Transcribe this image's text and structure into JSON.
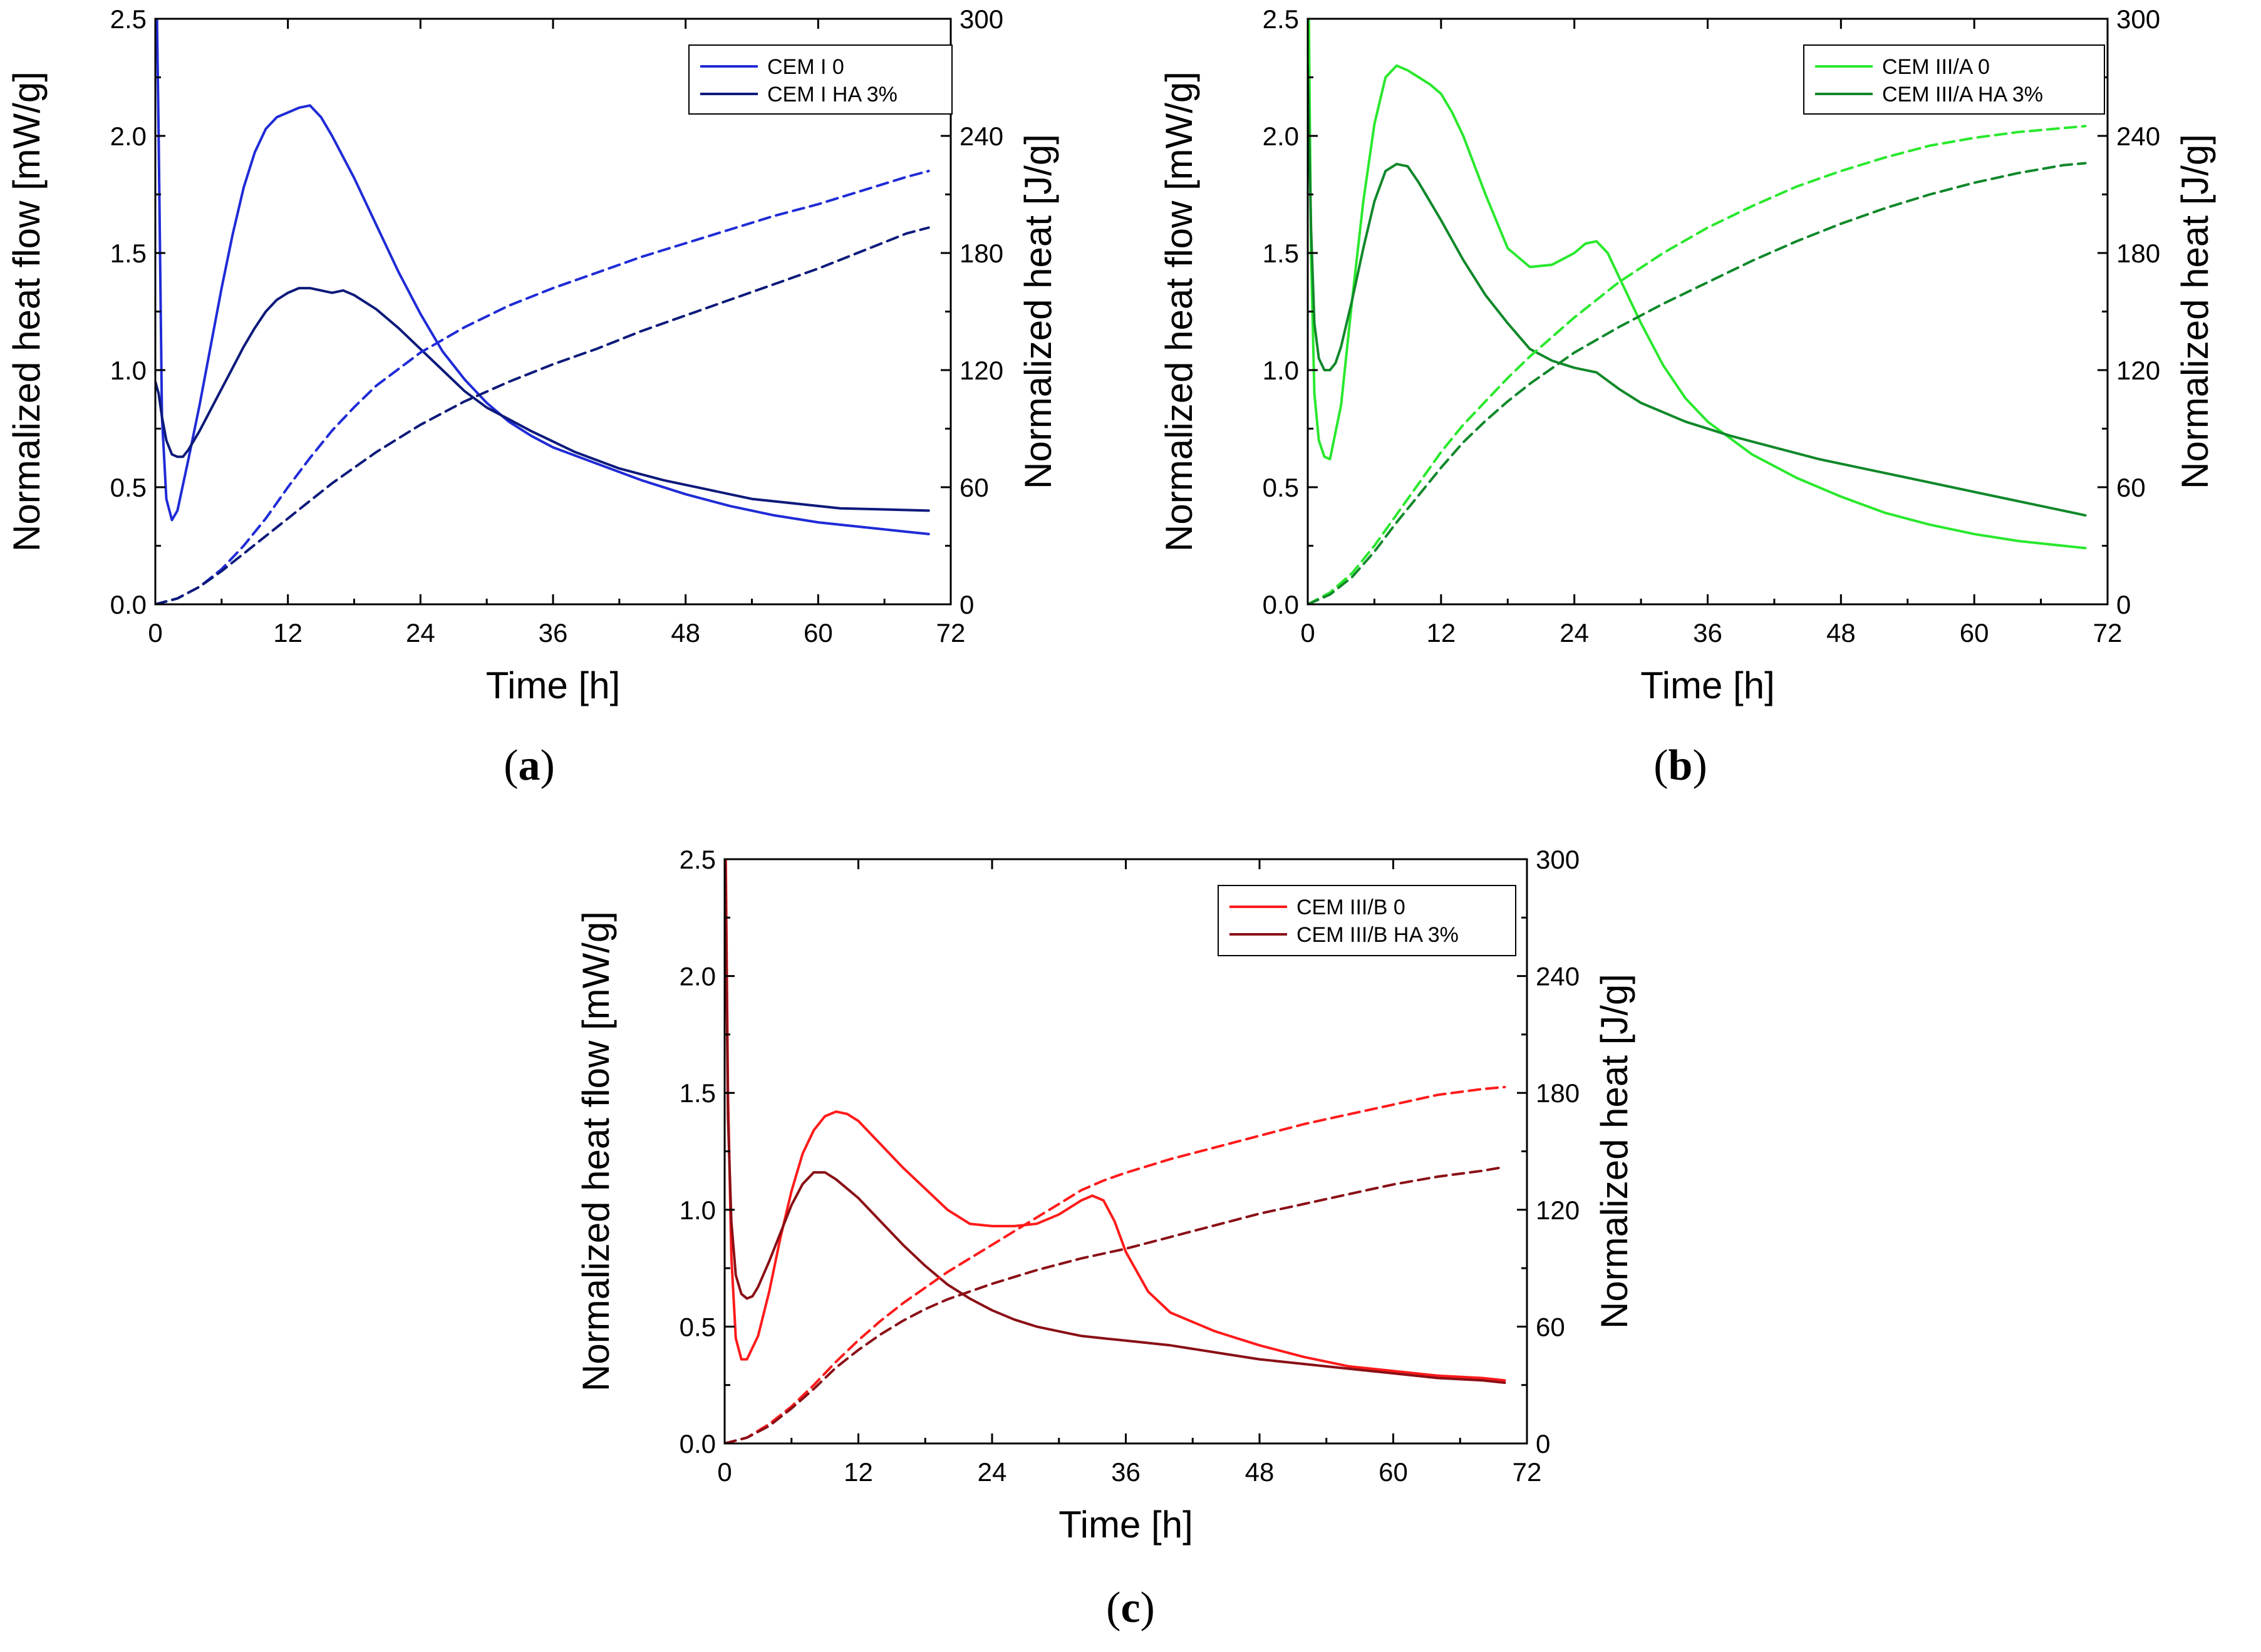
{
  "chart_data": [
    {
      "id": "a",
      "type": "line",
      "panel_label": "a",
      "xlabel": "Time [h]",
      "ylabel_left": "Normalized heat flow [mW/g]",
      "ylabel_right": "Normalized heat [J/g]",
      "xlim": [
        0,
        72
      ],
      "xticks": [
        "0",
        "12",
        "24",
        "36",
        "48",
        "60",
        "72"
      ],
      "ylim_left": [
        0.0,
        2.5
      ],
      "yticks_left": [
        "0.0",
        "0.5",
        "1.0",
        "1.5",
        "2.0",
        "2.5"
      ],
      "ylim_right": [
        0,
        300
      ],
      "yticks_right": [
        "0",
        "60",
        "120",
        "180",
        "240",
        "300"
      ],
      "legend": [
        "CEM I 0",
        "CEM I HA 3%"
      ],
      "series": [
        {
          "name": "CEM I 0",
          "color": "#1f2bd6",
          "axis": "left",
          "dash": false,
          "x": [
            0,
            0.3,
            0.6,
            1.0,
            1.5,
            2.0,
            3,
            4,
            5,
            6,
            7,
            8,
            9,
            10,
            11,
            12,
            13,
            14,
            15,
            16,
            18,
            20,
            22,
            24,
            26,
            28,
            30,
            32,
            34,
            36,
            40,
            44,
            48,
            52,
            56,
            60,
            64,
            68,
            70
          ],
          "y": [
            3.0,
            2.0,
            0.8,
            0.45,
            0.36,
            0.4,
            0.62,
            0.85,
            1.1,
            1.35,
            1.58,
            1.78,
            1.93,
            2.03,
            2.08,
            2.1,
            2.12,
            2.13,
            2.08,
            2.0,
            1.82,
            1.62,
            1.42,
            1.24,
            1.08,
            0.96,
            0.86,
            0.78,
            0.72,
            0.67,
            0.6,
            0.53,
            0.47,
            0.42,
            0.38,
            0.35,
            0.33,
            0.31,
            0.3
          ]
        },
        {
          "name": "CEM I HA 3%",
          "color": "#0d1a7a",
          "axis": "left",
          "dash": false,
          "x": [
            0,
            0.3,
            0.6,
            1.0,
            1.5,
            2.0,
            2.5,
            3,
            4,
            5,
            6,
            7,
            8,
            9,
            10,
            11,
            12,
            13,
            14,
            15,
            16,
            17,
            18,
            20,
            22,
            24,
            26,
            28,
            30,
            34,
            38,
            42,
            46,
            50,
            54,
            58,
            62,
            66,
            70
          ],
          "y": [
            0.95,
            0.9,
            0.8,
            0.7,
            0.64,
            0.63,
            0.63,
            0.66,
            0.74,
            0.83,
            0.92,
            1.01,
            1.1,
            1.18,
            1.25,
            1.3,
            1.33,
            1.35,
            1.35,
            1.34,
            1.33,
            1.34,
            1.32,
            1.26,
            1.18,
            1.09,
            1.0,
            0.91,
            0.84,
            0.74,
            0.65,
            0.58,
            0.53,
            0.49,
            0.45,
            0.43,
            0.41,
            0.405,
            0.4
          ]
        },
        {
          "name": "CEM I 0 (heat)",
          "color": "#1f2bd6",
          "axis": "right",
          "dash": true,
          "x": [
            0,
            2,
            4,
            6,
            8,
            10,
            12,
            14,
            16,
            18,
            20,
            24,
            28,
            32,
            36,
            40,
            44,
            48,
            52,
            56,
            60,
            64,
            68,
            70
          ],
          "y": [
            0,
            3,
            9,
            18,
            30,
            44,
            60,
            75,
            89,
            101,
            112,
            129,
            142,
            153,
            162,
            170,
            178,
            185,
            192,
            199,
            205,
            212,
            219,
            222
          ]
        },
        {
          "name": "CEM I HA 3% (heat)",
          "color": "#0d1a7a",
          "axis": "right",
          "dash": true,
          "x": [
            0,
            2,
            4,
            6,
            8,
            10,
            12,
            14,
            16,
            18,
            20,
            24,
            28,
            32,
            36,
            40,
            44,
            48,
            52,
            56,
            60,
            64,
            68,
            70
          ],
          "y": [
            0,
            3,
            9,
            17,
            26,
            35,
            44,
            53,
            62,
            70,
            78,
            92,
            104,
            114,
            123,
            131,
            140,
            148,
            156,
            164,
            172,
            181,
            190,
            193
          ]
        }
      ]
    },
    {
      "id": "b",
      "type": "line",
      "panel_label": "b",
      "xlabel": "Time [h]",
      "ylabel_left": "Normalized heat flow [mW/g]",
      "ylabel_right": "Normalized heat [J/g]",
      "xlim": [
        0,
        72
      ],
      "xticks": [
        "0",
        "12",
        "24",
        "36",
        "48",
        "60",
        "72"
      ],
      "ylim_left": [
        0.0,
        2.5
      ],
      "yticks_left": [
        "0.0",
        "0.5",
        "1.0",
        "1.5",
        "2.0",
        "2.5"
      ],
      "ylim_right": [
        0,
        300
      ],
      "yticks_right": [
        "0",
        "60",
        "120",
        "180",
        "240",
        "300"
      ],
      "legend": [
        "CEM III/A 0",
        "CEM III/A HA 3%"
      ],
      "series": [
        {
          "name": "CEM III/A 0",
          "color": "#29e82d",
          "axis": "left",
          "dash": false,
          "x": [
            0,
            0.3,
            0.6,
            1.0,
            1.5,
            2.0,
            3,
            4,
            5,
            6,
            7,
            8,
            9,
            10,
            11,
            12,
            13,
            14,
            16,
            18,
            20,
            22,
            24,
            25,
            26,
            27,
            28,
            30,
            32,
            34,
            36,
            40,
            44,
            48,
            52,
            56,
            60,
            64,
            68,
            70
          ],
          "y": [
            3.0,
            1.5,
            0.9,
            0.7,
            0.63,
            0.62,
            0.85,
            1.3,
            1.72,
            2.05,
            2.25,
            2.3,
            2.28,
            2.25,
            2.22,
            2.18,
            2.1,
            2.0,
            1.75,
            1.52,
            1.44,
            1.45,
            1.5,
            1.54,
            1.55,
            1.5,
            1.4,
            1.2,
            1.02,
            0.88,
            0.78,
            0.64,
            0.54,
            0.46,
            0.39,
            0.34,
            0.3,
            0.27,
            0.25,
            0.24
          ]
        },
        {
          "name": "CEM III/A HA 3%",
          "color": "#10882a",
          "axis": "left",
          "dash": false,
          "x": [
            0,
            0.3,
            0.6,
            1.0,
            1.5,
            2.0,
            2.5,
            3,
            4,
            5,
            6,
            7,
            8,
            9,
            10,
            11,
            12,
            14,
            16,
            18,
            20,
            22,
            24,
            26,
            28,
            30,
            34,
            38,
            42,
            46,
            50,
            54,
            58,
            62,
            66,
            70
          ],
          "y": [
            2.3,
            1.6,
            1.2,
            1.05,
            1.0,
            1.0,
            1.03,
            1.1,
            1.3,
            1.52,
            1.72,
            1.85,
            1.88,
            1.87,
            1.8,
            1.72,
            1.64,
            1.47,
            1.32,
            1.2,
            1.09,
            1.04,
            1.01,
            0.99,
            0.92,
            0.86,
            0.78,
            0.72,
            0.67,
            0.62,
            0.58,
            0.54,
            0.5,
            0.46,
            0.42,
            0.38
          ]
        },
        {
          "name": "CEM III/A 0 (heat)",
          "color": "#29e82d",
          "axis": "right",
          "dash": true,
          "x": [
            0,
            2,
            4,
            6,
            8,
            10,
            12,
            14,
            16,
            18,
            20,
            24,
            28,
            32,
            36,
            40,
            44,
            48,
            52,
            56,
            60,
            64,
            68,
            70
          ],
          "y": [
            0,
            6,
            16,
            30,
            46,
            62,
            78,
            92,
            104,
            116,
            127,
            147,
            165,
            180,
            193,
            204,
            214,
            222,
            229,
            235,
            239,
            242,
            244,
            245
          ]
        },
        {
          "name": "CEM III/A HA 3% (heat)",
          "color": "#10882a",
          "axis": "right",
          "dash": true,
          "x": [
            0,
            2,
            4,
            6,
            8,
            10,
            12,
            14,
            16,
            18,
            20,
            24,
            28,
            32,
            36,
            40,
            44,
            48,
            52,
            56,
            60,
            64,
            68,
            70
          ],
          "y": [
            0,
            5,
            14,
            27,
            42,
            56,
            70,
            83,
            94,
            104,
            113,
            129,
            142,
            154,
            165,
            176,
            186,
            195,
            203,
            210,
            216,
            221,
            225,
            226
          ]
        }
      ]
    },
    {
      "id": "c",
      "type": "line",
      "panel_label": "c",
      "xlabel": "Time [h]",
      "ylabel_left": "Normalized heat flow [mW/g]",
      "ylabel_right": "Normalized heat [J/g]",
      "xlim": [
        0,
        72
      ],
      "xticks": [
        "0",
        "12",
        "24",
        "36",
        "48",
        "60",
        "72"
      ],
      "ylim_left": [
        0.0,
        2.5
      ],
      "yticks_left": [
        "0.0",
        "0.5",
        "1.0",
        "1.5",
        "2.0",
        "2.5"
      ],
      "ylim_right": [
        0,
        300
      ],
      "yticks_right": [
        "0",
        "60",
        "120",
        "180",
        "240",
        "300"
      ],
      "legend": [
        "CEM III/B 0",
        "CEM III/B HA 3%"
      ],
      "series": [
        {
          "name": "CEM III/B 0",
          "color": "#ff1a1a",
          "axis": "left",
          "dash": false,
          "x": [
            0,
            0.3,
            0.6,
            1.0,
            1.5,
            2.0,
            3,
            4,
            5,
            6,
            7,
            8,
            9,
            10,
            11,
            12,
            14,
            16,
            18,
            20,
            22,
            24,
            26,
            28,
            30,
            32,
            33,
            34,
            35,
            36,
            38,
            40,
            44,
            48,
            52,
            56,
            60,
            64,
            68,
            70
          ],
          "y": [
            3.0,
            1.5,
            0.8,
            0.45,
            0.36,
            0.36,
            0.46,
            0.65,
            0.88,
            1.08,
            1.24,
            1.34,
            1.4,
            1.42,
            1.41,
            1.38,
            1.28,
            1.18,
            1.09,
            1.0,
            0.94,
            0.93,
            0.93,
            0.94,
            0.98,
            1.04,
            1.06,
            1.04,
            0.95,
            0.82,
            0.65,
            0.56,
            0.48,
            0.42,
            0.37,
            0.33,
            0.31,
            0.29,
            0.28,
            0.27
          ]
        },
        {
          "name": "CEM III/B HA 3%",
          "color": "#8a0f16",
          "axis": "left",
          "dash": false,
          "x": [
            0,
            0.3,
            0.6,
            1.0,
            1.5,
            2.0,
            2.5,
            3,
            4,
            5,
            6,
            7,
            8,
            9,
            10,
            11,
            12,
            14,
            16,
            18,
            20,
            22,
            24,
            26,
            28,
            30,
            32,
            34,
            36,
            40,
            44,
            48,
            52,
            56,
            60,
            64,
            68,
            70
          ],
          "y": [
            2.8,
            1.4,
            0.95,
            0.72,
            0.64,
            0.62,
            0.63,
            0.67,
            0.78,
            0.9,
            1.02,
            1.11,
            1.16,
            1.16,
            1.13,
            1.09,
            1.05,
            0.95,
            0.85,
            0.76,
            0.68,
            0.62,
            0.57,
            0.53,
            0.5,
            0.48,
            0.46,
            0.45,
            0.44,
            0.42,
            0.39,
            0.36,
            0.34,
            0.32,
            0.3,
            0.28,
            0.27,
            0.26
          ]
        },
        {
          "name": "CEM III/B 0 (heat)",
          "color": "#ff1a1a",
          "axis": "right",
          "dash": true,
          "x": [
            0,
            2,
            4,
            6,
            8,
            10,
            12,
            14,
            16,
            18,
            20,
            22,
            24,
            26,
            28,
            30,
            32,
            34,
            36,
            40,
            44,
            48,
            52,
            56,
            60,
            64,
            68,
            70
          ],
          "y": [
            0,
            3,
            10,
            19,
            30,
            42,
            53,
            63,
            72,
            80,
            88,
            95,
            102,
            109,
            116,
            123,
            130,
            135,
            139,
            146,
            152,
            158,
            164,
            169,
            174,
            179,
            182,
            183
          ]
        },
        {
          "name": "CEM III/B HA 3% (heat)",
          "color": "#8a0f16",
          "axis": "right",
          "dash": true,
          "x": [
            0,
            2,
            4,
            6,
            8,
            10,
            12,
            14,
            16,
            18,
            20,
            22,
            24,
            28,
            32,
            36,
            40,
            44,
            48,
            52,
            56,
            60,
            64,
            68,
            70
          ],
          "y": [
            0,
            3,
            9,
            18,
            28,
            39,
            48,
            56,
            63,
            69,
            74,
            78,
            82,
            89,
            95,
            100,
            106,
            112,
            118,
            123,
            128,
            133,
            137,
            140,
            142
          ]
        }
      ]
    }
  ]
}
